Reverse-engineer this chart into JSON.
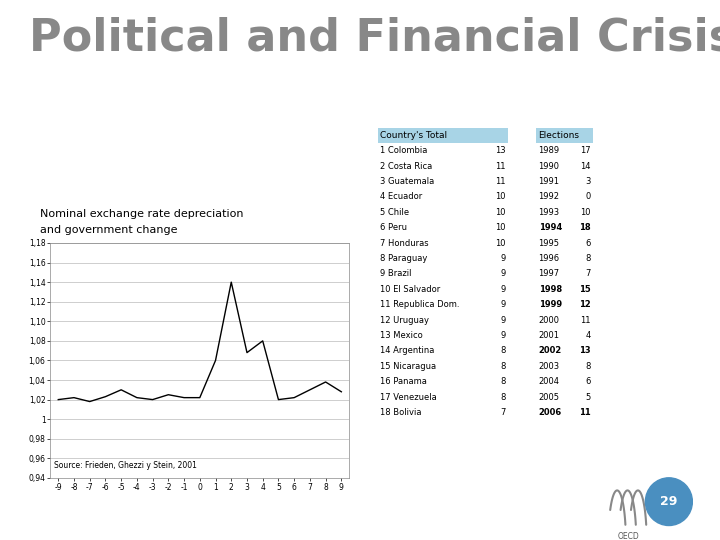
{
  "title": "Political and Financial Crisis",
  "chart_subtitle1": "Nominal exchange rate depreciation",
  "chart_subtitle2": "and government change",
  "source_text": "Source: Frieden, Ghezzi y Stein, 2001",
  "x_values": [
    -9,
    -8,
    -7,
    -6,
    -5,
    -4,
    -3,
    -2,
    -1,
    0,
    1,
    2,
    3,
    4,
    5,
    6,
    7,
    8,
    9
  ],
  "y_values": [
    1.02,
    1.022,
    1.018,
    1.023,
    1.03,
    1.022,
    1.02,
    1.025,
    1.022,
    1.022,
    1.06,
    1.14,
    1.068,
    1.08,
    1.02,
    1.022,
    1.03,
    1.038,
    1.028
  ],
  "y_ticks": [
    0.94,
    0.96,
    0.98,
    1.0,
    1.02,
    1.04,
    1.06,
    1.08,
    1.1,
    1.12,
    1.14,
    1.16,
    1.18
  ],
  "y_tick_labels": [
    "0,94",
    "0,96",
    "0,98",
    "1",
    "1,02",
    "1,04",
    "1,06",
    "1,08",
    "1,10",
    "1,12",
    "1,14",
    "1,16",
    "1,18"
  ],
  "x_ticks": [
    -9,
    -8,
    -7,
    -6,
    -5,
    -4,
    -3,
    -2,
    -1,
    0,
    1,
    2,
    3,
    4,
    5,
    6,
    7,
    8,
    9
  ],
  "ylim": [
    0.94,
    1.18
  ],
  "xlim": [
    -9.5,
    9.5
  ],
  "countries": [
    [
      "1 Colombia",
      13
    ],
    [
      "2 Costa Rica",
      11
    ],
    [
      "3 Guatemala",
      11
    ],
    [
      "4 Ecuador",
      10
    ],
    [
      "5 Chile",
      10
    ],
    [
      "6 Peru",
      10
    ],
    [
      "7 Honduras",
      10
    ],
    [
      "8 Paraguay",
      9
    ],
    [
      "9 Brazil",
      9
    ],
    [
      "10 El Salvador",
      9
    ],
    [
      "11 Republica Dom.",
      9
    ],
    [
      "12 Uruguay",
      9
    ],
    [
      "13 Mexico",
      9
    ],
    [
      "14 Argentina",
      8
    ],
    [
      "15 Nicaragua",
      8
    ],
    [
      "16 Panama",
      8
    ],
    [
      "17 Venezuela",
      8
    ],
    [
      "18 Bolivia",
      7
    ]
  ],
  "elections": [
    [
      1989,
      17,
      false
    ],
    [
      1990,
      14,
      false
    ],
    [
      1991,
      3,
      false
    ],
    [
      1992,
      0,
      false
    ],
    [
      1993,
      10,
      false
    ],
    [
      1994,
      18,
      true
    ],
    [
      1995,
      6,
      false
    ],
    [
      1996,
      8,
      false
    ],
    [
      1997,
      7,
      false
    ],
    [
      1998,
      15,
      true
    ],
    [
      1999,
      12,
      true
    ],
    [
      2000,
      11,
      false
    ],
    [
      2001,
      4,
      false
    ],
    [
      2002,
      13,
      true
    ],
    [
      2003,
      8,
      false
    ],
    [
      2004,
      6,
      false
    ],
    [
      2005,
      5,
      false
    ],
    [
      2006,
      11,
      true
    ]
  ],
  "bg_color": "#ffffff",
  "line_color": "#000000",
  "table_header_color": "#a8d4e6",
  "elections_header_color": "#a8d4e6",
  "page_num": "29",
  "page_circle_color": "#4a8fc0",
  "title_color": "#888888",
  "title_fontsize": 32,
  "subtitle_fontsize": 8,
  "table_fontsize": 6.5,
  "source_fontsize": 5.5
}
